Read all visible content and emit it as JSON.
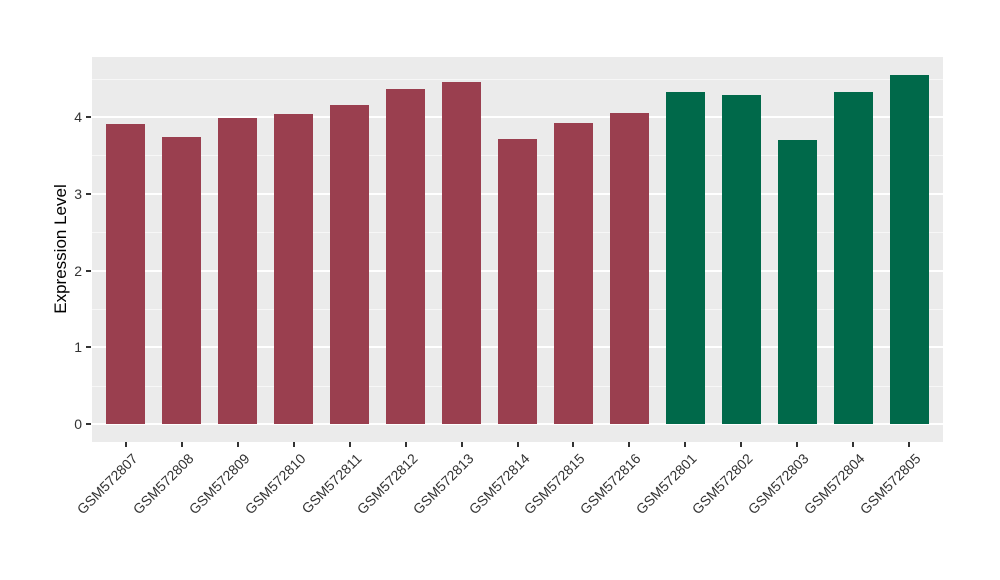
{
  "chart_data": {
    "type": "bar",
    "title": "",
    "xlabel": "",
    "ylabel": "Expression Level",
    "categories": [
      "GSM572807",
      "GSM572808",
      "GSM572809",
      "GSM572810",
      "GSM572811",
      "GSM572812",
      "GSM572813",
      "GSM572814",
      "GSM572815",
      "GSM572816",
      "GSM572801",
      "GSM572802",
      "GSM572803",
      "GSM572804",
      "GSM572805"
    ],
    "values": [
      3.91,
      3.74,
      3.99,
      4.04,
      4.16,
      4.37,
      4.45,
      3.71,
      3.92,
      4.05,
      4.32,
      4.29,
      3.7,
      4.32,
      4.55
    ],
    "bar_colors": [
      "#9a3f4f",
      "#9a3f4f",
      "#9a3f4f",
      "#9a3f4f",
      "#9a3f4f",
      "#9a3f4f",
      "#9a3f4f",
      "#9a3f4f",
      "#9a3f4f",
      "#9a3f4f",
      "#00694a",
      "#00694a",
      "#00694a",
      "#00694a",
      "#00694a"
    ],
    "group_colors": {
      "maroon": "#9a3f4f",
      "green": "#00694a"
    },
    "yticks": [
      "0",
      "1",
      "2",
      "3",
      "4"
    ],
    "ytick_values": [
      0,
      1,
      2,
      3,
      4
    ],
    "yticks_minor": [
      0.5,
      1.5,
      2.5,
      3.5,
      4.5
    ],
    "ylim": [
      -0.23,
      4.78
    ],
    "grid": "major-minor horizontal",
    "legend_position": "none",
    "panel_bg": "#ebebeb",
    "grid_major_color": "#ffffff",
    "grid_minor_color": "#f7f7f7",
    "tick_mark_color": "#333333",
    "axis_text_color": "#333333",
    "axis_title_color": "#000000"
  }
}
